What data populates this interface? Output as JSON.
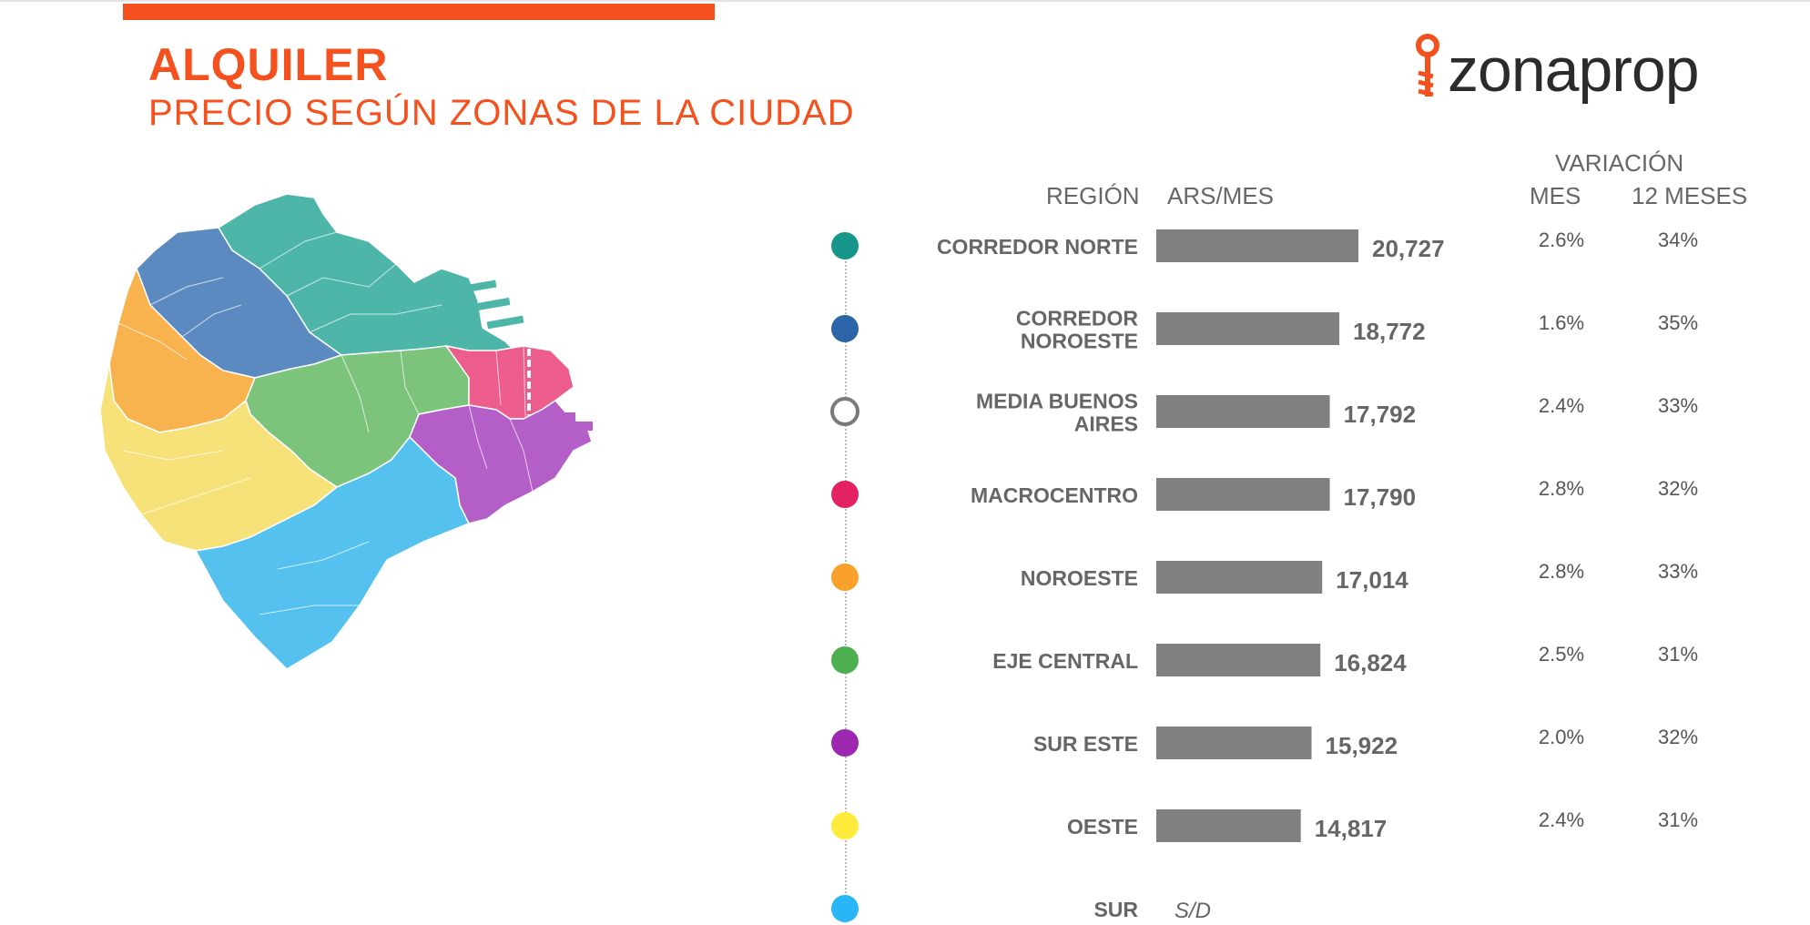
{
  "header": {
    "title": "ALQUILER",
    "subtitle": "PRECIO SEGÚN ZONAS DE LA CIUDAD",
    "brand": "zonaprop",
    "accent_color": "#f4511e"
  },
  "columns": {
    "variation_group": "VARIACIÓN",
    "region": "REGIÓN",
    "price": "ARS/MES",
    "month": "MES",
    "year": "12 MESES"
  },
  "chart_data": {
    "type": "bar",
    "orientation": "horizontal",
    "categories": [
      "CORREDOR NORTE",
      "CORREDOR NOROESTE",
      "MEDIA BUENOS AIRES",
      "MACROCENTRO",
      "NOROESTE",
      "EJE CENTRAL",
      "SUR ESTE",
      "OESTE",
      "SUR"
    ],
    "values": [
      20727,
      18772,
      17792,
      17790,
      17014,
      16824,
      15922,
      14817,
      null
    ],
    "value_labels": [
      "20,727",
      "18,772",
      "17,792",
      "17,790",
      "17,014",
      "16,824",
      "15,922",
      "14,817",
      "S/D"
    ],
    "var_month": [
      "2.6%",
      "1.6%",
      "2.4%",
      "2.8%",
      "2.8%",
      "2.5%",
      "2.0%",
      "2.4%",
      ""
    ],
    "var_12m": [
      "34%",
      "35%",
      "33%",
      "32%",
      "33%",
      "31%",
      "32%",
      "31%",
      ""
    ],
    "marker_colors": [
      "#16968a",
      "#2b65a8",
      "hollow",
      "#e42162",
      "#f9a12a",
      "#4caf50",
      "#9c27b0",
      "#ffeb3b",
      "#29b6f6"
    ],
    "bar_color": "#808080",
    "xlim": [
      0,
      20727
    ]
  },
  "map_colors": {
    "corredor_norte": "#4db6a9",
    "corredor_noroeste": "#5a8ac0",
    "macrocentro": "#ec5c8c",
    "noroeste": "#f8b34f",
    "eje_central": "#7cc47c",
    "sur_este": "#b45ec8",
    "oeste": "#f7e27a",
    "sur": "#55c1ee"
  }
}
